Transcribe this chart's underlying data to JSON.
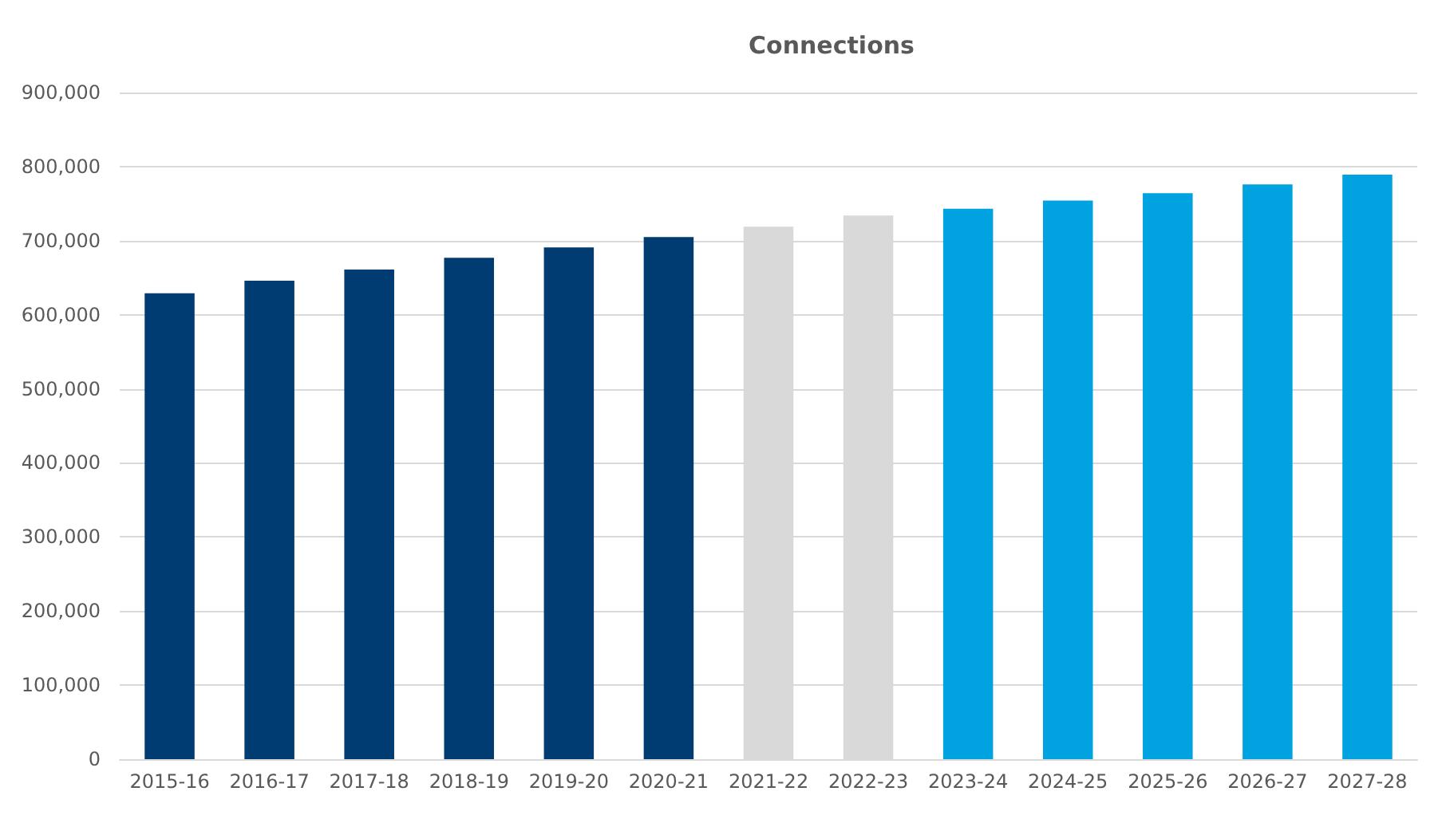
{
  "chart_data": {
    "type": "bar",
    "title": "Connections",
    "categories": [
      "2015-16",
      "2016-17",
      "2017-18",
      "2018-19",
      "2019-20",
      "2020-21",
      "2021-22",
      "2022-23",
      "2023-24",
      "2024-25",
      "2025-26",
      "2026-27",
      "2027-28"
    ],
    "values": [
      629000,
      646000,
      661000,
      677000,
      691000,
      705000,
      719000,
      734000,
      743000,
      754000,
      764000,
      776000,
      789000
    ],
    "colors": [
      "#003b71",
      "#003b71",
      "#003b71",
      "#003b71",
      "#003b71",
      "#003b71",
      "#d9d9d9",
      "#d9d9d9",
      "#00a3e0",
      "#00a3e0",
      "#00a3e0",
      "#00a3e0",
      "#00a3e0"
    ],
    "ylim": [
      0,
      900000
    ],
    "yticks": [
      0,
      {
        "value": 100000,
        "label": "100,000"
      },
      {
        "value": 200000,
        "label": "200,000"
      },
      {
        "value": 300000,
        "label": "300,000"
      },
      {
        "value": 400000,
        "label": "400,000"
      },
      {
        "value": 500000,
        "label": "500,000"
      },
      {
        "value": 600000,
        "label": "600,000"
      },
      {
        "value": 700000,
        "label": "700,000"
      },
      {
        "value": 800000,
        "label": "800,000"
      },
      {
        "value": 900000,
        "label": "900,000"
      }
    ],
    "grid": "y"
  }
}
